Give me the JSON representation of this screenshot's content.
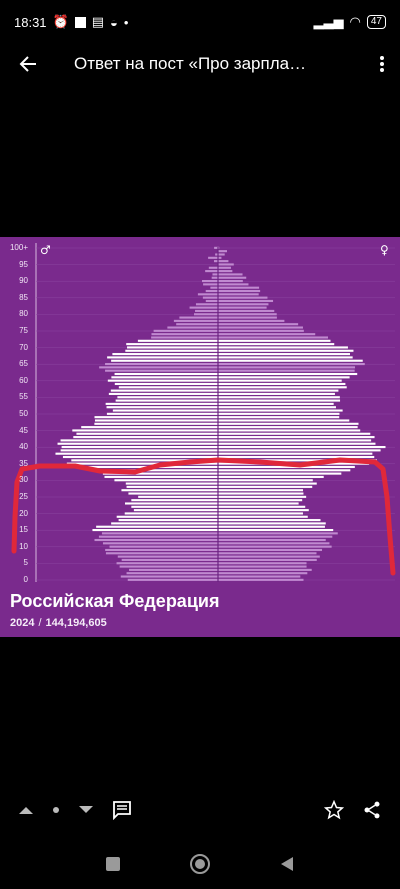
{
  "status": {
    "time": "18:31",
    "battery": "47"
  },
  "app_bar": {
    "title": "Ответ на пост «Про зарпла…"
  },
  "icons": {
    "back": "arrow-left-icon",
    "more": "more-vert-icon",
    "up": "arrow-up-icon",
    "dot": "dot-icon",
    "down": "arrow-down-icon",
    "comment": "comment-icon",
    "star": "star-icon",
    "share": "share-icon",
    "home": "home-icon",
    "square": "recents-icon",
    "triangle": "back-triangle-icon"
  },
  "chart": {
    "male_symbol": "♂",
    "female_symbol": "♀",
    "age_labels": [
      "100+",
      "95",
      "90",
      "85",
      "80",
      "75",
      "70",
      "65",
      "60",
      "55",
      "50",
      "45",
      "40",
      "35",
      "30",
      "25",
      "20",
      "15",
      "10",
      "5",
      "0"
    ],
    "title": "Российская Федерация",
    "year": "2024",
    "population": "144,194,605",
    "colors": {
      "background": "#7a2a8d",
      "bar_light": "#ffffff",
      "bar_dim": "#c08ad0",
      "annotation": "#e0283a"
    }
  },
  "chart_data": {
    "type": "bar",
    "title": "Российская Федерация",
    "subtitle": "2024 / 144,194,605",
    "x": [
      "0",
      "5",
      "10",
      "15",
      "20",
      "25",
      "30",
      "35",
      "40",
      "45",
      "50",
      "55",
      "60",
      "65",
      "70",
      "75",
      "80",
      "85",
      "90",
      "95",
      "100+"
    ],
    "series": [
      {
        "name": "♂",
        "values": [
          0.95,
          1.02,
          1.2,
          1.3,
          0.95,
          0.9,
          1.05,
          1.58,
          1.7,
          1.48,
          1.18,
          1.1,
          1.1,
          1.22,
          0.98,
          0.62,
          0.3,
          0.16,
          0.12,
          0.06,
          0.02
        ]
      },
      {
        "name": "♀",
        "values": [
          0.9,
          0.97,
          1.15,
          1.23,
          0.92,
          0.88,
          1.03,
          1.6,
          1.72,
          1.54,
          1.27,
          1.25,
          1.35,
          1.52,
          1.35,
          0.95,
          0.58,
          0.52,
          0.3,
          0.12,
          0.03
        ]
      }
    ]
  }
}
